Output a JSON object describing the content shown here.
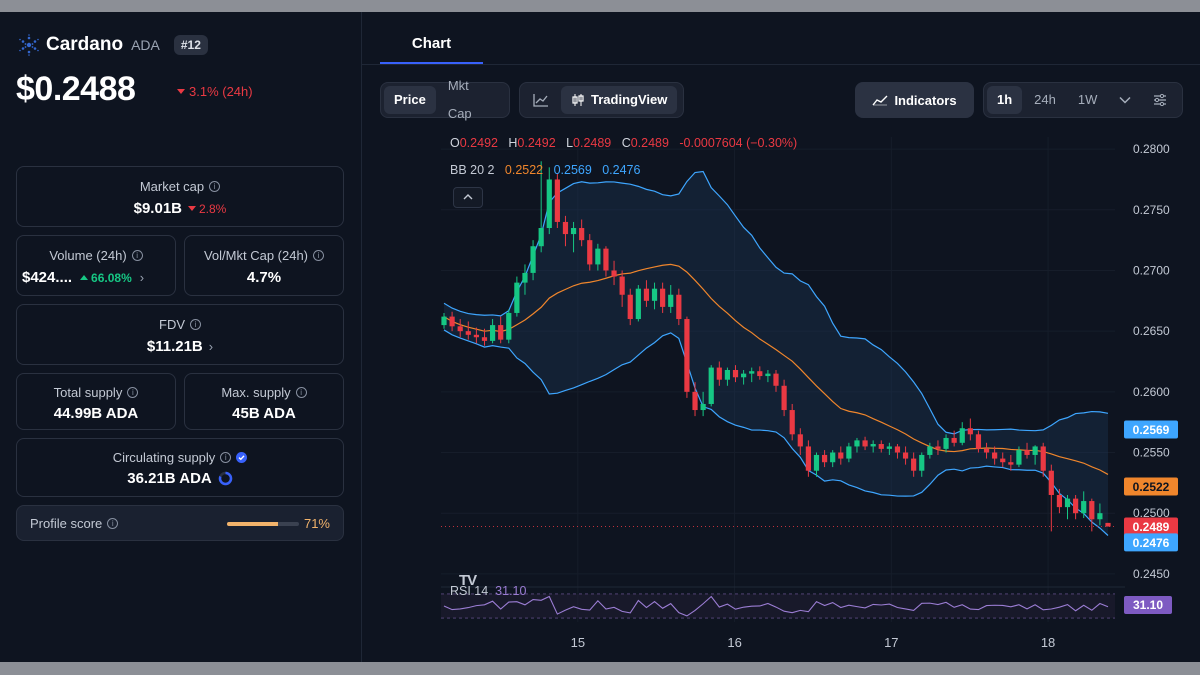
{
  "coin": {
    "name": "Cardano",
    "symbol": "ADA",
    "rank": "#12",
    "price": "$0.2488",
    "change_24h": "3.1% (24h)"
  },
  "stats": {
    "market_cap": {
      "label": "Market cap",
      "value": "$9.01B",
      "change": "2.8%"
    },
    "volume": {
      "label": "Volume (24h)",
      "value": "$424....",
      "change": "66.08%"
    },
    "vol_mkt_cap": {
      "label": "Vol/Mkt Cap (24h)",
      "value": "4.7%"
    },
    "fdv": {
      "label": "FDV",
      "value": "$11.21B"
    },
    "total_supply": {
      "label": "Total supply",
      "value": "44.99B ADA"
    },
    "max_supply": {
      "label": "Max. supply",
      "value": "45B ADA"
    },
    "circulating_supply": {
      "label": "Circulating supply",
      "value": "36.21B ADA"
    },
    "profile_score": {
      "label": "Profile score",
      "value": "71%",
      "fraction": 0.71
    }
  },
  "tabs": {
    "chart": "Chart"
  },
  "toolbar": {
    "price": "Price",
    "mkt_cap": "Mkt Cap",
    "tradingview": "TradingView",
    "indicators": "Indicators",
    "tf_1h": "1h",
    "tf_24h": "24h",
    "tf_1w": "1W"
  },
  "colors": {
    "up": "#16c784",
    "down": "#ea3943",
    "bb_basis": "#f0862c",
    "bb_band": "#3ea6ff",
    "rsi": "#9b7dd4"
  },
  "legend": {
    "o_label": "O",
    "o": "0.2492",
    "h_label": "H",
    "h": "0.2492",
    "l_label": "L",
    "l": "0.2489",
    "c_label": "C",
    "c": "0.2489",
    "change": "-0.0007604 (−0.30%)",
    "bb_label": "BB 20 2",
    "bb_basis": "0.2522",
    "bb_upper": "0.2569",
    "bb_lower": "0.2476",
    "rsi_label": "RSI 14",
    "rsi_value": "31.10"
  },
  "chart_data": {
    "type": "candlestick",
    "x_ticks": [
      "15",
      "16",
      "17",
      "18"
    ],
    "x_tick_positions": [
      0.873,
      1.873,
      2.873,
      3.873
    ],
    "x_range": [
      0.0,
      4.3
    ],
    "y_ticks": [
      "0.2800",
      "0.2750",
      "0.2700",
      "0.2650",
      "0.2600",
      "0.2550",
      "0.2500",
      "0.2450"
    ],
    "ylim": [
      0.244,
      0.281
    ],
    "price_tags": [
      {
        "value": 0.2569,
        "label": "0.2569",
        "color": "#3ea6ff"
      },
      {
        "value": 0.2522,
        "label": "0.2522",
        "color": "#f0862c"
      },
      {
        "value": 0.2489,
        "label": "0.2489",
        "color": "#ea3943"
      },
      {
        "value": 0.2476,
        "label": "0.2476",
        "color": "#3ea6ff"
      }
    ],
    "rsi_tag": "31.10",
    "candles": [
      [
        0.2655,
        0.2665,
        0.2652,
        0.2662
      ],
      [
        0.2662,
        0.2666,
        0.265,
        0.2654
      ],
      [
        0.2654,
        0.266,
        0.2645,
        0.265
      ],
      [
        0.265,
        0.2658,
        0.2643,
        0.2647
      ],
      [
        0.2647,
        0.2653,
        0.264,
        0.2645
      ],
      [
        0.2645,
        0.2652,
        0.2638,
        0.2642
      ],
      [
        0.2642,
        0.266,
        0.264,
        0.2655
      ],
      [
        0.2655,
        0.2662,
        0.264,
        0.2643
      ],
      [
        0.2643,
        0.2668,
        0.264,
        0.2665
      ],
      [
        0.2665,
        0.2695,
        0.2662,
        0.269
      ],
      [
        0.269,
        0.2705,
        0.268,
        0.2698
      ],
      [
        0.2698,
        0.2725,
        0.2692,
        0.272
      ],
      [
        0.272,
        0.279,
        0.2715,
        0.2735
      ],
      [
        0.2735,
        0.2785,
        0.273,
        0.2775
      ],
      [
        0.2775,
        0.278,
        0.2735,
        0.274
      ],
      [
        0.274,
        0.2745,
        0.272,
        0.273
      ],
      [
        0.273,
        0.274,
        0.2715,
        0.2735
      ],
      [
        0.2735,
        0.2742,
        0.272,
        0.2725
      ],
      [
        0.2725,
        0.273,
        0.27,
        0.2705
      ],
      [
        0.2705,
        0.2722,
        0.27,
        0.2718
      ],
      [
        0.2718,
        0.272,
        0.2695,
        0.27
      ],
      [
        0.27,
        0.2708,
        0.2688,
        0.2695
      ],
      [
        0.2695,
        0.27,
        0.267,
        0.268
      ],
      [
        0.268,
        0.2685,
        0.2655,
        0.266
      ],
      [
        0.266,
        0.2688,
        0.2658,
        0.2685
      ],
      [
        0.2685,
        0.2692,
        0.267,
        0.2675
      ],
      [
        0.2675,
        0.269,
        0.2668,
        0.2685
      ],
      [
        0.2685,
        0.269,
        0.2665,
        0.267
      ],
      [
        0.267,
        0.2688,
        0.2665,
        0.268
      ],
      [
        0.268,
        0.2685,
        0.2655,
        0.266
      ],
      [
        0.266,
        0.2662,
        0.2595,
        0.26
      ],
      [
        0.26,
        0.2608,
        0.258,
        0.2585
      ],
      [
        0.2585,
        0.26,
        0.258,
        0.259
      ],
      [
        0.259,
        0.2622,
        0.2588,
        0.262
      ],
      [
        0.262,
        0.2625,
        0.2605,
        0.261
      ],
      [
        0.261,
        0.262,
        0.2605,
        0.2618
      ],
      [
        0.2618,
        0.2622,
        0.2608,
        0.2612
      ],
      [
        0.2612,
        0.2618,
        0.2606,
        0.2615
      ],
      [
        0.2615,
        0.262,
        0.2608,
        0.2617
      ],
      [
        0.2617,
        0.2621,
        0.261,
        0.2613
      ],
      [
        0.2613,
        0.2618,
        0.2608,
        0.2615
      ],
      [
        0.2615,
        0.2618,
        0.26,
        0.2605
      ],
      [
        0.2605,
        0.261,
        0.258,
        0.2585
      ],
      [
        0.2585,
        0.259,
        0.256,
        0.2565
      ],
      [
        0.2565,
        0.257,
        0.2548,
        0.2555
      ],
      [
        0.2555,
        0.256,
        0.253,
        0.2535
      ],
      [
        0.2535,
        0.255,
        0.253,
        0.2548
      ],
      [
        0.2548,
        0.2552,
        0.2538,
        0.2542
      ],
      [
        0.2542,
        0.2552,
        0.2538,
        0.255
      ],
      [
        0.255,
        0.2555,
        0.254,
        0.2545
      ],
      [
        0.2545,
        0.2558,
        0.2542,
        0.2555
      ],
      [
        0.2555,
        0.2562,
        0.255,
        0.256
      ],
      [
        0.256,
        0.2563,
        0.2552,
        0.2555
      ],
      [
        0.2555,
        0.256,
        0.255,
        0.2557
      ],
      [
        0.2557,
        0.256,
        0.255,
        0.2553
      ],
      [
        0.2553,
        0.2558,
        0.2548,
        0.2555
      ],
      [
        0.2555,
        0.2557,
        0.2545,
        0.255
      ],
      [
        0.255,
        0.2555,
        0.254,
        0.2545
      ],
      [
        0.2545,
        0.255,
        0.253,
        0.2535
      ],
      [
        0.2535,
        0.255,
        0.253,
        0.2548
      ],
      [
        0.2548,
        0.2558,
        0.2545,
        0.2555
      ],
      [
        0.2555,
        0.256,
        0.2548,
        0.2553
      ],
      [
        0.2553,
        0.2565,
        0.255,
        0.2562
      ],
      [
        0.2562,
        0.2568,
        0.2555,
        0.2558
      ],
      [
        0.2558,
        0.2575,
        0.2556,
        0.257
      ],
      [
        0.257,
        0.2578,
        0.256,
        0.2565
      ],
      [
        0.2565,
        0.2568,
        0.255,
        0.2553
      ],
      [
        0.2553,
        0.2558,
        0.2545,
        0.255
      ],
      [
        0.255,
        0.2555,
        0.254,
        0.2545
      ],
      [
        0.2545,
        0.255,
        0.2538,
        0.2542
      ],
      [
        0.2542,
        0.2548,
        0.2535,
        0.254
      ],
      [
        0.254,
        0.2555,
        0.2538,
        0.2552
      ],
      [
        0.2552,
        0.2558,
        0.2545,
        0.2548
      ],
      [
        0.2548,
        0.2556,
        0.254,
        0.2555
      ],
      [
        0.2555,
        0.2558,
        0.253,
        0.2535
      ],
      [
        0.2535,
        0.254,
        0.2485,
        0.2515
      ],
      [
        0.2515,
        0.252,
        0.25,
        0.2505
      ],
      [
        0.2505,
        0.2515,
        0.2495,
        0.2512
      ],
      [
        0.2512,
        0.2515,
        0.2495,
        0.25
      ],
      [
        0.25,
        0.2518,
        0.2496,
        0.251
      ],
      [
        0.251,
        0.2512,
        0.2485,
        0.2495
      ],
      [
        0.2495,
        0.2508,
        0.249,
        0.25
      ],
      [
        0.2492,
        0.2492,
        0.2489,
        0.2489
      ]
    ]
  }
}
